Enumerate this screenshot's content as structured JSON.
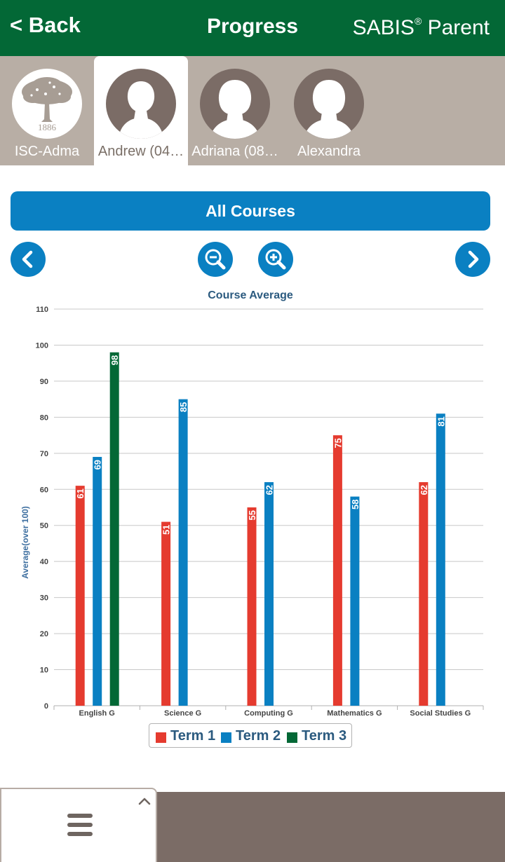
{
  "header": {
    "back_label": "< Back",
    "title": "Progress",
    "brand_name": "SABIS",
    "brand_mark": "®",
    "brand_suffix": "Parent",
    "bg_color": "#036836"
  },
  "profiles": [
    {
      "name": "ISC-Adma",
      "active": false,
      "avatar": "school-logo",
      "logo_year": "1886"
    },
    {
      "name": "Andrew (04…",
      "active": true,
      "avatar": "default-person-avatar"
    },
    {
      "name": "Adriana (08…",
      "active": false,
      "avatar": "default-person-avatar"
    },
    {
      "name": "Alexandra",
      "active": false,
      "avatar": "default-person-avatar"
    }
  ],
  "course_selector": {
    "label": "All Courses"
  },
  "controls": {
    "prev": "chevron-left-icon",
    "zoom_out": "zoom-out-icon",
    "zoom_in": "zoom-in-icon",
    "next": "chevron-right-icon"
  },
  "chart_data": {
    "type": "bar",
    "title": "Course Average",
    "ylabel": "Average(over 100)",
    "xlabel": "",
    "ylim": [
      0,
      110
    ],
    "yticks": [
      0,
      10,
      20,
      30,
      40,
      50,
      60,
      70,
      80,
      90,
      100,
      110
    ],
    "categories": [
      "English G",
      "Science G",
      "Computing G",
      "Mathematics G",
      "Social Studies G"
    ],
    "series": [
      {
        "name": "Term 1",
        "color": "#e53b2f",
        "values": [
          61,
          51,
          55,
          75,
          62
        ]
      },
      {
        "name": "Term 2",
        "color": "#0a80c2",
        "values": [
          69,
          85,
          62,
          58,
          81
        ]
      },
      {
        "name": "Term 3",
        "color": "#036836",
        "values": [
          98,
          null,
          null,
          null,
          null
        ]
      }
    ],
    "legend_position": "bottom-center",
    "grid": true
  },
  "bottom": {
    "menu_icon": "hamburger-menu-icon",
    "collapse_icon": "chevron-up-icon"
  }
}
